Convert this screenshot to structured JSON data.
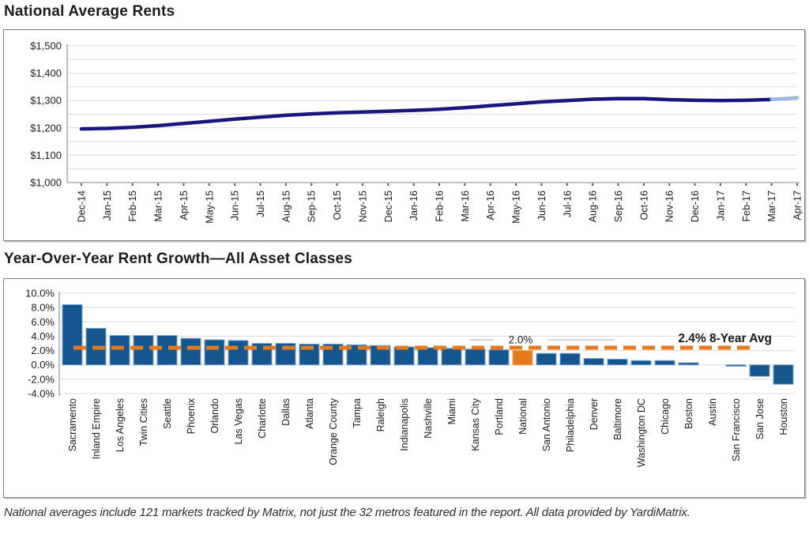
{
  "page": {
    "title1": "National Average Rents",
    "title2": "Year-Over-Year Rent Growth—All Asset Classes",
    "footnote": "National averages include 121 markets tracked by Matrix, not just the 32 metros featured in the report. All data provided by YardiMatrix."
  },
  "colors": {
    "grid": "#DCDCDC",
    "axis": "#808080",
    "tick": "#555555",
    "text": "#1A1A1A",
    "panel_border": "#7F7F7F",
    "callout_line": "#A6A6A6",
    "navy": "#1A177C",
    "navy_tail": "#9AB9DC",
    "bar_blue": "#15568F",
    "bar_stroke": "#7CA6D0",
    "orange": "#E4791D"
  },
  "chart_data": [
    {
      "type": "line",
      "title": "National Average Rents",
      "x": [
        "Dec-14",
        "Jan-15",
        "Feb-15",
        "Mar-15",
        "Apr-15",
        "May-15",
        "Jun-15",
        "Jul-15",
        "Aug-15",
        "Sep-15",
        "Oct-15",
        "Nov-15",
        "Dec-15",
        "Jan-16",
        "Feb-16",
        "Mar-16",
        "Apr-16",
        "May-16",
        "Jun-16",
        "Jul-16",
        "Aug-16",
        "Sep-16",
        "Oct-16",
        "Nov-16",
        "Dec-16",
        "Jan-17",
        "Feb-17",
        "Mar-17",
        "Apr-17"
      ],
      "values": [
        1196,
        1198,
        1202,
        1208,
        1216,
        1224,
        1232,
        1239,
        1246,
        1251,
        1255,
        1258,
        1261,
        1264,
        1268,
        1274,
        1281,
        1288,
        1295,
        1300,
        1305,
        1307,
        1307,
        1303,
        1301,
        1300,
        1301,
        1304,
        1310
      ],
      "ylabel": "",
      "xlabel": "",
      "ylim": [
        1000,
        1500
      ],
      "ytick_values": [
        1500,
        1400,
        1300,
        1200,
        1100,
        1000
      ],
      "ytick_labels": [
        "$1,500",
        "$1,400",
        "$1,300",
        "$1,200",
        "$1,100",
        "$1,000"
      ],
      "minor_grid_step": 50,
      "grid": true,
      "line_color": "#1A177C",
      "tail_color": "#9AB9DC",
      "tail_points": 1,
      "legend_position": "none"
    },
    {
      "type": "bar",
      "title": "Year-Over-Year Rent Growth—All Asset Classes",
      "categories": [
        "Sacramento",
        "Inland Empire",
        "Los Angeles",
        "Twin Cities",
        "Seattle",
        "Phoenix",
        "Orlando",
        "Las Vegas",
        "Charlotte",
        "Dallas",
        "Atlanta",
        "Orange County",
        "Tampa",
        "Raleigh",
        "Indianapolis",
        "Nashville",
        "Miami",
        "Kansas City",
        "Portland",
        "National",
        "San Antonio",
        "Philadelphia",
        "Denver",
        "Baltimore",
        "Washington DC",
        "Chicago",
        "Boston",
        "Austin",
        "San Francisco",
        "San Jose",
        "Houston"
      ],
      "values": [
        8.4,
        5.1,
        4.1,
        4.1,
        4.1,
        3.7,
        3.5,
        3.4,
        3.0,
        3.0,
        2.9,
        2.9,
        2.8,
        2.7,
        2.5,
        2.4,
        2.3,
        2.2,
        2.1,
        2.0,
        1.6,
        1.6,
        0.9,
        0.8,
        0.6,
        0.6,
        0.3,
        0.0,
        -0.2,
        -1.6,
        -2.7
      ],
      "ylim": [
        -4,
        10
      ],
      "ytick_values": [
        10,
        8,
        6,
        4,
        2,
        0,
        -2,
        -4
      ],
      "ytick_labels": [
        "10.0%",
        "8.0%",
        "6.0%",
        "4.0%",
        "2.0%",
        "0.0%",
        "-2.0%",
        "-4.0%"
      ],
      "grid": true,
      "bar_color": "#15568F",
      "bar_stroke": "#7CA6D0",
      "highlight_index": 19,
      "highlight_color": "#E4791D",
      "highlight_label": "2.0%",
      "avg_line": {
        "value": 2.4,
        "label": "2.4% 8-Year Avg",
        "color": "#E4791D"
      },
      "legend_position": "none"
    }
  ]
}
